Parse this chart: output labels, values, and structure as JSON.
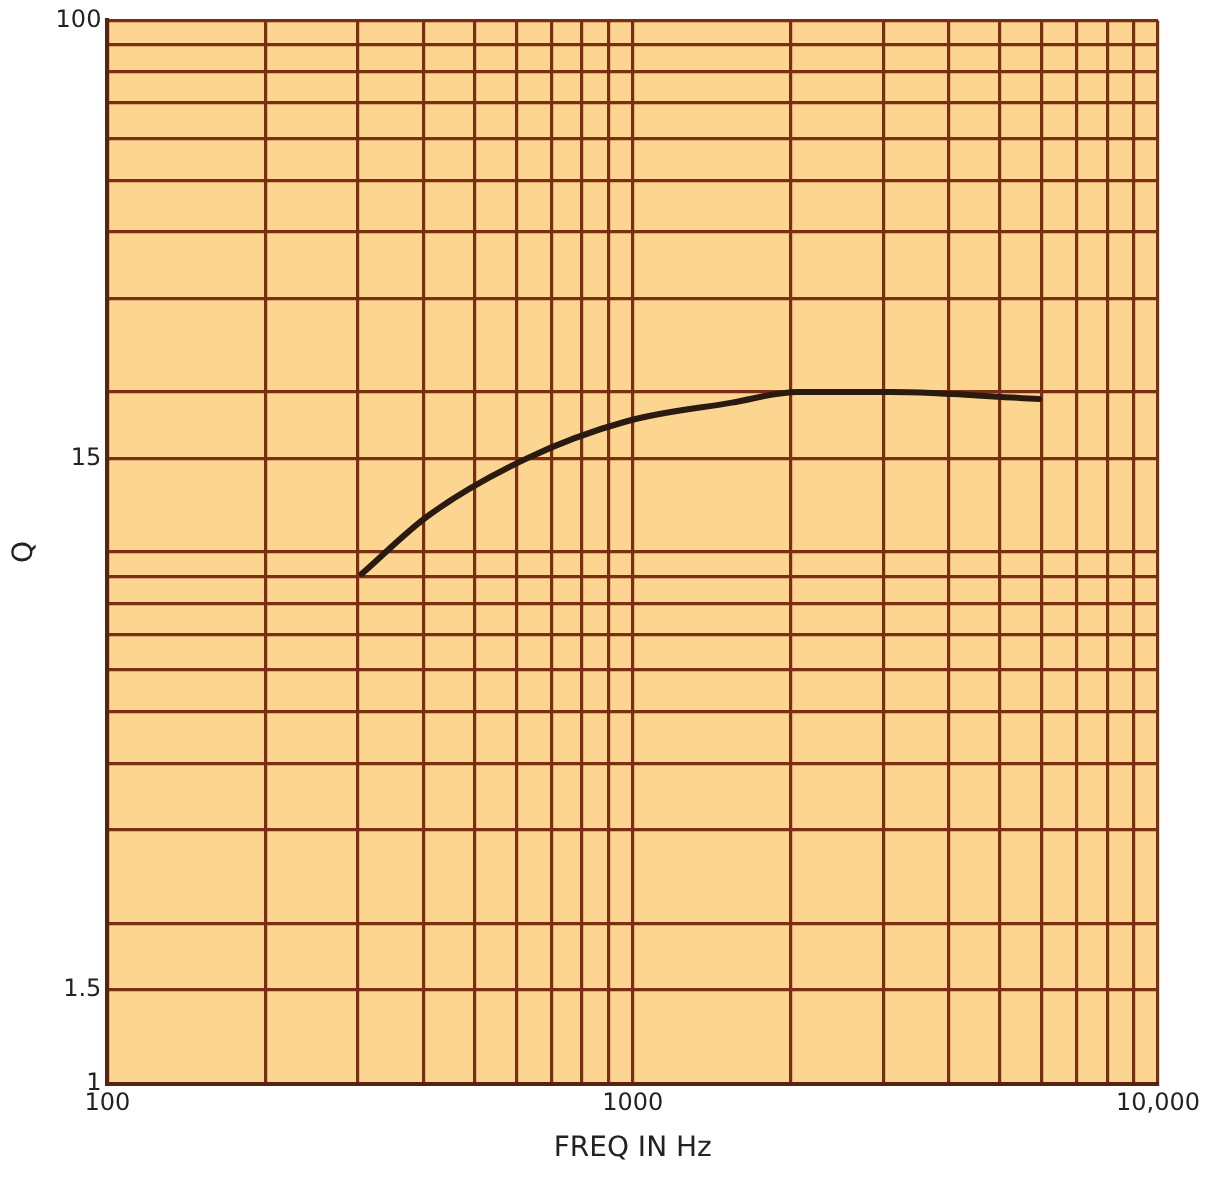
{
  "chart_data": {
    "type": "line",
    "xlabel": "FREQ IN Hz",
    "ylabel": "Q",
    "log": "xy",
    "grid": true,
    "legend": false,
    "marker": "none",
    "line_style": "solid",
    "xlim": [
      100,
      10000
    ],
    "ylim": [
      1,
      100
    ],
    "xticks": [
      100,
      {
        "value": 200,
        "label": null
      },
      {
        "value": 300,
        "label": null
      },
      {
        "value": 400,
        "label": null
      },
      {
        "value": 500,
        "label": null
      },
      {
        "value": 600,
        "label": null
      },
      {
        "value": 700,
        "label": null
      },
      {
        "value": 800,
        "label": null
      },
      {
        "value": 900,
        "label": null
      },
      1000,
      {
        "value": 2000,
        "label": null
      },
      {
        "value": 3000,
        "label": null
      },
      {
        "value": 4000,
        "label": null
      },
      {
        "value": 5000,
        "label": null
      },
      {
        "value": 6000,
        "label": null
      },
      {
        "value": 7000,
        "label": null
      },
      {
        "value": 8000,
        "label": null
      },
      {
        "value": 9000,
        "label": null
      },
      {
        "value": 10000,
        "label": "10,000"
      }
    ],
    "yticks": [
      1,
      1.5,
      {
        "value": 2,
        "label": null
      },
      {
        "value": 3,
        "label": null
      },
      {
        "value": 4,
        "label": null
      },
      {
        "value": 5,
        "label": null
      },
      {
        "value": 6,
        "label": null
      },
      {
        "value": 7,
        "label": null
      },
      {
        "value": 8,
        "label": null
      },
      {
        "value": 9,
        "label": null
      },
      {
        "value": 10,
        "label": null
      },
      15,
      {
        "value": 20,
        "label": null
      },
      {
        "value": 30,
        "label": null
      },
      {
        "value": 40,
        "label": null
      },
      {
        "value": 50,
        "label": null
      },
      {
        "value": 60,
        "label": null
      },
      {
        "value": 70,
        "label": null
      },
      {
        "value": 80,
        "label": null
      },
      {
        "value": 90,
        "label": null
      },
      100
    ],
    "series": [
      {
        "color": "#2a1a10",
        "x": [
          305,
          408,
          629,
          971,
          1545,
          2062,
          3094,
          5940
        ],
        "values": [
          9.1,
          11.7,
          15.0,
          17.6,
          19.1,
          20.0,
          20.0,
          19.4
        ]
      }
    ]
  }
}
